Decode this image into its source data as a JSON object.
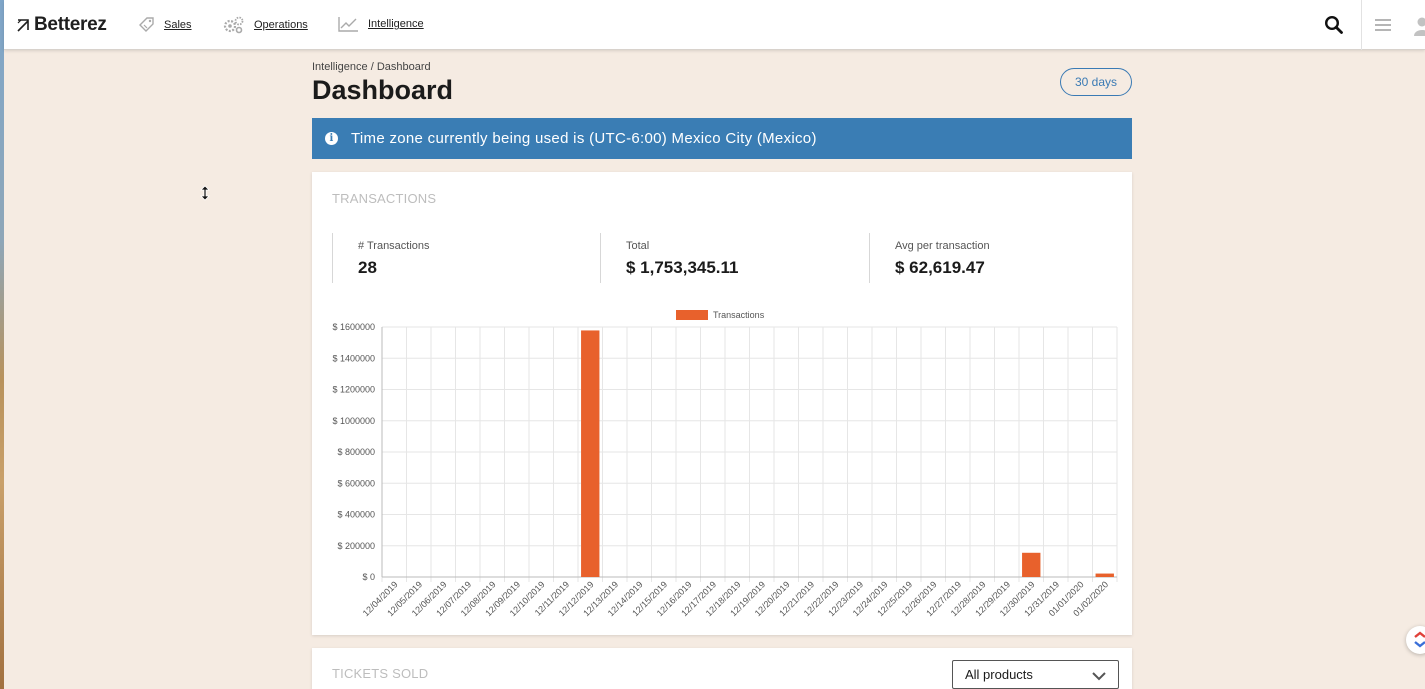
{
  "app": {
    "brand": "Betterez"
  },
  "nav": {
    "items": [
      {
        "label": "Sales",
        "icon": "tag-icon"
      },
      {
        "label": "Operations",
        "icon": "gears-icon"
      },
      {
        "label": "Intelligence",
        "icon": "line-chart-icon"
      }
    ],
    "right_icons": [
      "search-icon",
      "hamburger-menu-icon",
      "user-icon"
    ]
  },
  "breadcrumb": "Intelligence / Dashboard",
  "page_title": "Dashboard",
  "range_button": "30 days",
  "timezone_banner": "Time zone currently being used is (UTC-6:00) Mexico City (Mexico)",
  "transactions_card": {
    "title": "TRANSACTIONS",
    "stats": [
      {
        "label": "# Transactions",
        "value": "28"
      },
      {
        "label": "Total",
        "value": "$ 1,753,345.11"
      },
      {
        "label": "Avg per transaction",
        "value": "$ 62,619.47"
      }
    ]
  },
  "tickets_card": {
    "title": "TICKETS SOLD",
    "product_select": "All products"
  },
  "colors": {
    "accent": "#3a7db4",
    "bar": "#e8612c",
    "background": "#f5ebe2"
  },
  "chart_data": {
    "type": "bar",
    "legend": [
      "Transactions"
    ],
    "legend_position": "top",
    "grid": true,
    "ylim": [
      0,
      1600000
    ],
    "yticks": [
      "$ 1600000",
      "$ 1400000",
      "$ 1200000",
      "$ 1000000",
      "$ 800000",
      "$ 600000",
      "$ 400000",
      "$ 200000",
      "$ 0"
    ],
    "categories": [
      "12/04/2019",
      "12/05/2019",
      "12/06/2019",
      "12/07/2019",
      "12/08/2019",
      "12/09/2019",
      "12/10/2019",
      "12/11/2019",
      "12/12/2019",
      "12/13/2019",
      "12/14/2019",
      "12/15/2019",
      "12/16/2019",
      "12/17/2019",
      "12/18/2019",
      "12/19/2019",
      "12/20/2019",
      "12/21/2019",
      "12/22/2019",
      "12/23/2019",
      "12/24/2019",
      "12/25/2019",
      "12/26/2019",
      "12/27/2019",
      "12/28/2019",
      "12/29/2019",
      "12/30/2019",
      "12/31/2019",
      "01/01/2020",
      "01/02/2020"
    ],
    "series": [
      {
        "name": "Transactions",
        "values": [
          0,
          0,
          0,
          0,
          0,
          0,
          0,
          0,
          1578000,
          0,
          0,
          0,
          0,
          0,
          0,
          0,
          0,
          0,
          0,
          0,
          0,
          0,
          0,
          0,
          0,
          0,
          155000,
          0,
          0,
          22000
        ]
      }
    ]
  }
}
